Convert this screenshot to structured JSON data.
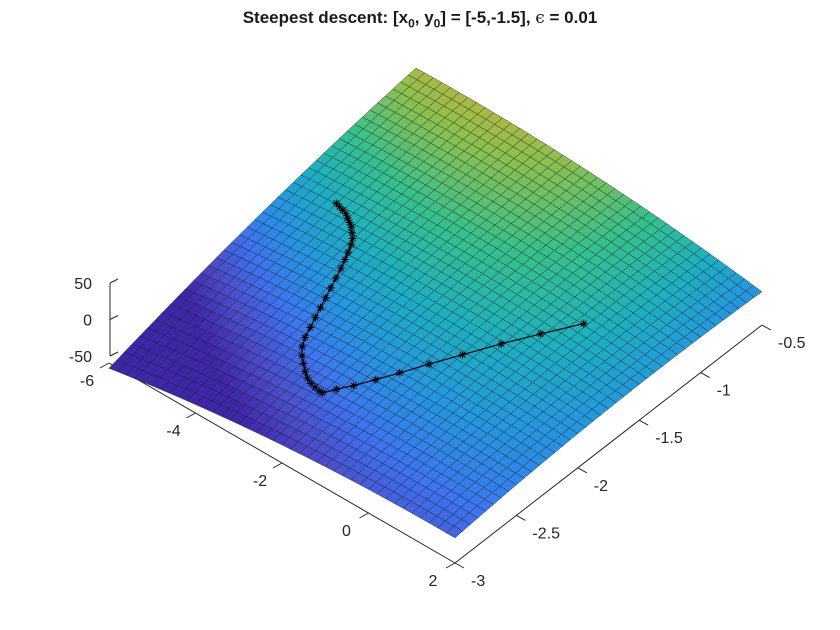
{
  "chart_data": {
    "type": "surface",
    "title": {
      "prefix": "Steepest descent: [x",
      "sub1": "0",
      "mid": ", y",
      "sub2": "0",
      "suffix": "] = [-5,-1.5], ",
      "epsilon": "ϵ",
      "value": " = 0.01"
    },
    "x_axis": {
      "range": [
        -6,
        2
      ],
      "ticks": [
        -6,
        -4,
        -2,
        0,
        2
      ],
      "tick_labels": [
        "-6",
        "-4",
        "-2",
        "0",
        "2"
      ]
    },
    "y_axis": {
      "range": [
        -3,
        -0.5
      ],
      "ticks": [
        -3,
        -2.5,
        -2,
        -1.5,
        -1,
        -0.5
      ],
      "tick_labels": [
        "-3",
        "-2.5",
        "-2",
        "-1.5",
        "-1",
        "-0.5"
      ]
    },
    "z_axis": {
      "range": [
        -50,
        50
      ],
      "ticks": [
        -50,
        0,
        50
      ],
      "tick_labels": [
        "-50",
        "0",
        "50"
      ]
    },
    "grid": false,
    "colormap": [
      "#3e26a8",
      "#4b4ac8",
      "#3d74f0",
      "#2496e0",
      "#1cb0c0",
      "#36c08c",
      "#8cc04e",
      "#d2b03a",
      "#fcbc3c",
      "#f9fb15"
    ],
    "mesh_color": "#1a1a1a",
    "path_marker": "*",
    "path_color": "#000000",
    "path_start": [
      -5,
      -1.5
    ],
    "path": [
      [
        -5.0,
        -1.5
      ],
      [
        -4.9,
        -1.51
      ],
      [
        -4.8,
        -1.52
      ],
      [
        -4.7,
        -1.53
      ],
      [
        -4.6,
        -1.55
      ],
      [
        -4.5,
        -1.57
      ],
      [
        -4.4,
        -1.59
      ],
      [
        -4.3,
        -1.62
      ],
      [
        -4.2,
        -1.65
      ],
      [
        -4.12,
        -1.69
      ],
      [
        -4.05,
        -1.74
      ],
      [
        -3.98,
        -1.79
      ],
      [
        -3.9,
        -1.85
      ],
      [
        -3.82,
        -1.92
      ],
      [
        -3.74,
        -1.99
      ],
      [
        -3.66,
        -2.06
      ],
      [
        -3.58,
        -2.13
      ],
      [
        -3.5,
        -2.2
      ],
      [
        -3.42,
        -2.27
      ],
      [
        -3.34,
        -2.34
      ],
      [
        -3.24,
        -2.4
      ],
      [
        -3.1,
        -2.45
      ],
      [
        -2.95,
        -2.49
      ],
      [
        -2.8,
        -2.53
      ],
      [
        -2.66,
        -2.56
      ],
      [
        -2.52,
        -2.58
      ],
      [
        -2.4,
        -2.59
      ],
      [
        -2.28,
        -2.6
      ],
      [
        -2.2,
        -2.6
      ],
      [
        -2.05,
        -2.54
      ],
      [
        -1.85,
        -2.47
      ],
      [
        -1.62,
        -2.37
      ],
      [
        -1.38,
        -2.26
      ],
      [
        -1.1,
        -2.12
      ],
      [
        -0.78,
        -1.96
      ],
      [
        -0.42,
        -1.77
      ],
      [
        -0.05,
        -1.58
      ],
      [
        0.35,
        -1.37
      ]
    ]
  }
}
